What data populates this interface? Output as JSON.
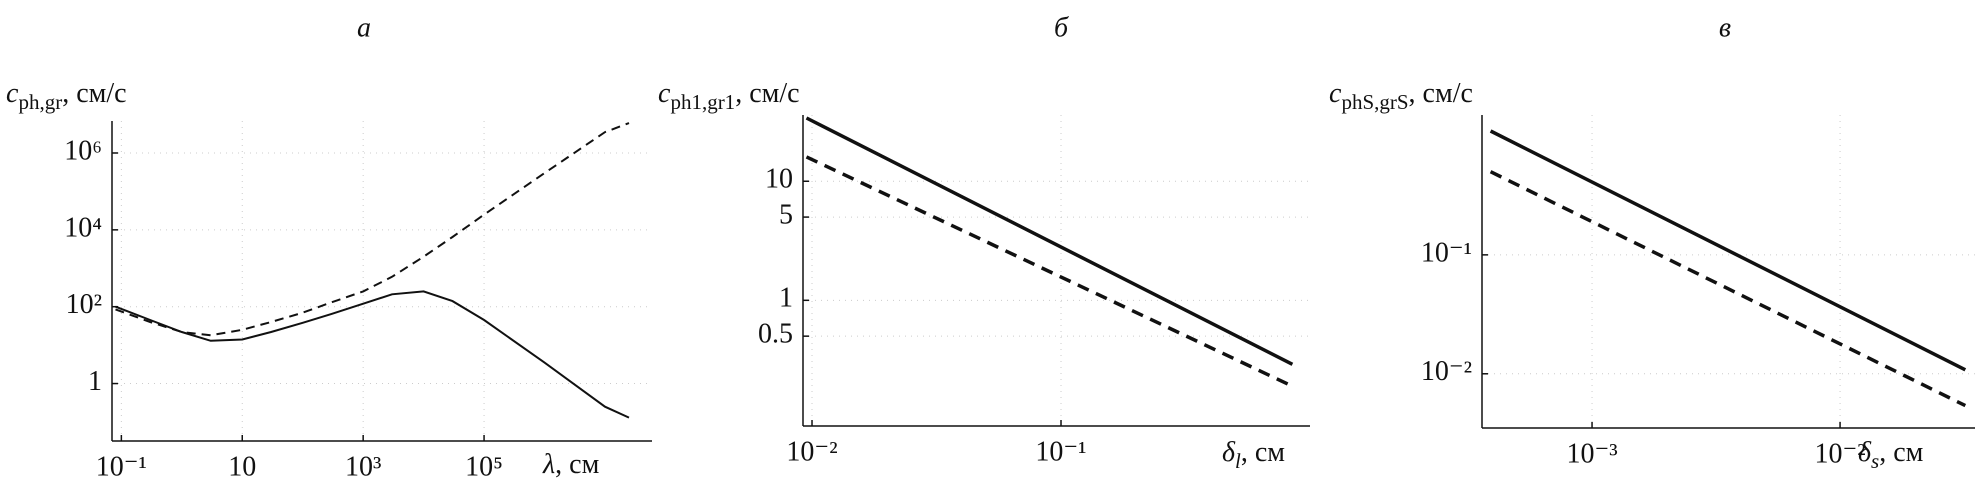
{
  "chart_data": [
    {
      "type": "line",
      "title": "а",
      "y_label": {
        "symbol": "c",
        "subscript": "ph,gr",
        "unit": ", см/с"
      },
      "x_label": {
        "symbol": "λ",
        "unit": ", см"
      },
      "log_x": true,
      "log_y": true,
      "grid": true,
      "xlim": [
        0.07,
        60000000
      ],
      "ylim": [
        0.032,
        6800000
      ],
      "xticks": [
        {
          "value": 0.1,
          "label": "10⁻¹"
        },
        10,
        {
          "value": 1000,
          "label": "10³"
        },
        {
          "value": 100000,
          "label": "10⁵"
        }
      ],
      "yticks": [
        1,
        {
          "value": 100,
          "label": "10²"
        },
        {
          "value": 10000,
          "label": "10⁴"
        },
        {
          "value": 1000000,
          "label": "10⁶"
        }
      ],
      "x": [
        0.08,
        0.3,
        1,
        3,
        10,
        30,
        100,
        300,
        1000,
        3000,
        10000,
        30000,
        100000,
        1000000,
        10000000,
        25000000
      ],
      "series": [
        {
          "color": "#111111",
          "style": "solid",
          "values": [
            100,
            45,
            22,
            13,
            14,
            22,
            38,
            65,
            120,
            210,
            250,
            140,
            45,
            3.5,
            0.25,
            0.13
          ]
        },
        {
          "color": "#111111",
          "style": "dashed",
          "values": [
            85,
            40,
            22,
            18,
            25,
            40,
            70,
            130,
            250,
            600,
            2000,
            6500,
            25000,
            300000,
            3500000,
            6000000
          ]
        }
      ]
    },
    {
      "type": "line",
      "title": "б",
      "y_label": {
        "symbol": "c",
        "subscript": "ph1,gr1",
        "unit": ", см/с"
      },
      "x_label": {
        "symbol": "δ",
        "subscript": "l",
        "unit": ", см"
      },
      "log_x": true,
      "log_y": true,
      "grid": true,
      "xlim": [
        0.0092,
        1
      ],
      "ylim": [
        0.088,
        36
      ],
      "xticks": [
        {
          "value": 0.01,
          "label": "10⁻²"
        },
        {
          "value": 0.1,
          "label": "10⁻¹"
        }
      ],
      "yticks": [
        0.5,
        1,
        5,
        10
      ],
      "x": [
        0.0095,
        0.85
      ],
      "series": [
        {
          "color": "#111111",
          "style": "solid",
          "values": [
            34,
            0.29
          ]
        },
        {
          "color": "#111111",
          "style": "dashed",
          "values": [
            16,
            0.19
          ]
        }
      ]
    },
    {
      "type": "line",
      "title": "в",
      "y_label": {
        "symbol": "c",
        "subscript": "phS,grS",
        "unit": ", см/с"
      },
      "x_label": {
        "symbol": "δ",
        "subscript": "s",
        "unit": ", см"
      },
      "log_x": true,
      "log_y": true,
      "grid": true,
      "xlim": [
        0.00036,
        0.035
      ],
      "ylim": [
        0.0035,
        1.5
      ],
      "xticks": [
        {
          "value": 0.001,
          "label": "10⁻³"
        },
        {
          "value": 0.01,
          "label": "10⁻²"
        }
      ],
      "yticks": [
        {
          "value": 0.01,
          "label": "10⁻²"
        },
        {
          "value": 0.1,
          "label": "10⁻¹"
        }
      ],
      "x": [
        0.00039,
        0.032
      ],
      "series": [
        {
          "color": "#111111",
          "style": "solid",
          "values": [
            1.1,
            0.0108
          ]
        },
        {
          "color": "#111111",
          "style": "dashed",
          "values": [
            0.5,
            0.0054
          ]
        }
      ]
    }
  ]
}
